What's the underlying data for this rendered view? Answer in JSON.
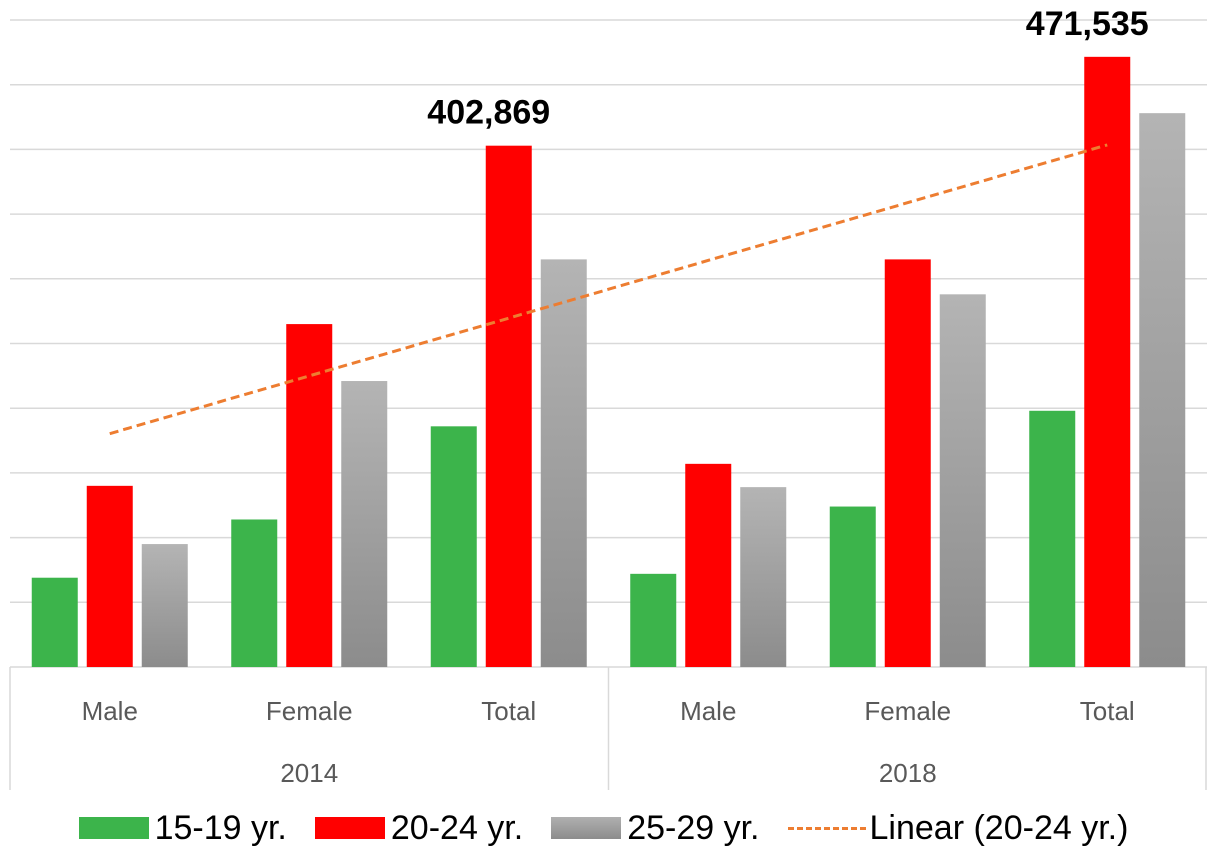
{
  "chart_data": {
    "type": "bar",
    "groups": [
      {
        "label": "2014",
        "categories": [
          "Male",
          "Female",
          "Total"
        ]
      },
      {
        "label": "2018",
        "categories": [
          "Male",
          "Female",
          "Total"
        ]
      }
    ],
    "series": [
      {
        "name": "15-19 yr.",
        "color": "#3CB44B",
        "values": [
          69000,
          114000,
          186000,
          72000,
          124000,
          198000
        ]
      },
      {
        "name": "20-24 yr.",
        "color": "#FF0000",
        "values": [
          140000,
          265000,
          402869,
          157000,
          315000,
          471535
        ]
      },
      {
        "name": "25-29 yr.",
        "color": "#A6A6A6",
        "values": [
          95000,
          221000,
          315000,
          139000,
          288000,
          428000
        ]
      }
    ],
    "trendline": {
      "name": "Linear (20-24 yr.)",
      "color": "#ED7D31",
      "series": "20-24 yr.",
      "type": "linear"
    },
    "data_labels": [
      {
        "series": "20-24 yr.",
        "index": 2,
        "text": "402,869"
      },
      {
        "series": "20-24 yr.",
        "index": 5,
        "text": "471,535"
      }
    ],
    "ylim": [
      0,
      500000
    ],
    "grid": true,
    "legend_position": "bottom"
  }
}
